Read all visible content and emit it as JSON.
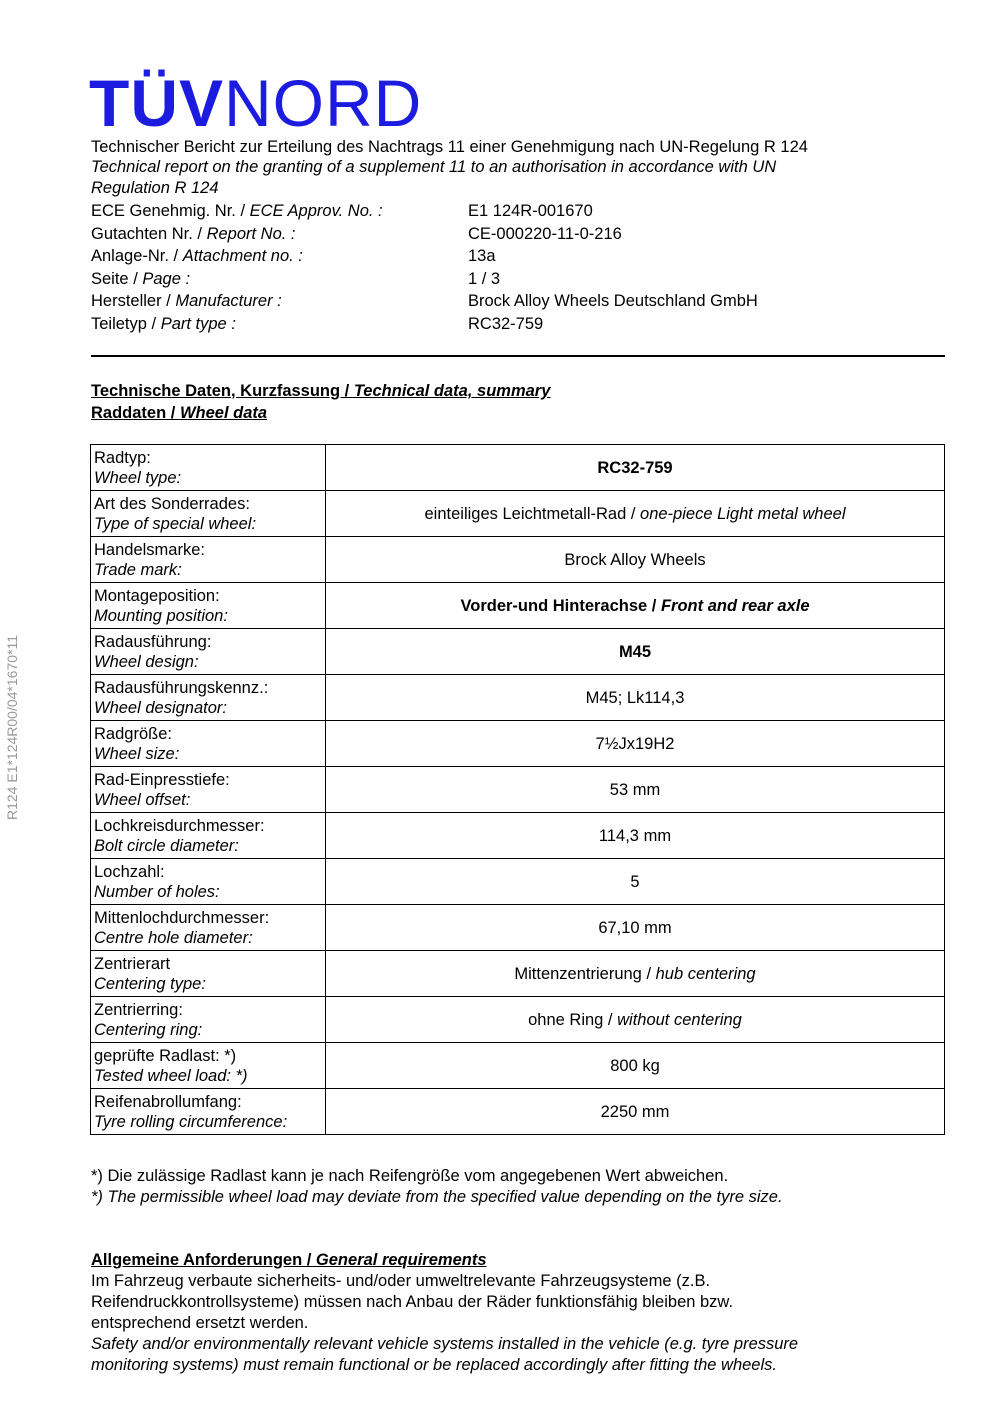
{
  "logo": {
    "bold": "TÜV",
    "light": "NORD"
  },
  "side_text": "R124  E1*124R00/04*1670*11",
  "title_de": "Technischer Bericht zur Erteilung des Nachtrags 11 einer Genehmigung nach UN-Regelung R 124",
  "title_en_1": "Technical report on the granting of a supplement 11 to an authorisation in accordance with UN",
  "title_en_2": "Regulation R 124",
  "meta": [
    {
      "de": "ECE Genehmig. Nr.  / ",
      "en": "ECE Approv. No. :",
      "value": "E1 124R-001670"
    },
    {
      "de": "Gutachten Nr.  / ",
      "en": "Report No. :",
      "value": "CE-000220-11-0-216"
    },
    {
      "de": "Anlage-Nr.  / ",
      "en": "Attachment no. :",
      "value": "13a"
    },
    {
      "de": "Seite  / ",
      "en": "Page :",
      "value": "1 / 3"
    },
    {
      "de": "Hersteller  / ",
      "en": "Manufacturer :",
      "value": "Brock Alloy Wheels Deutschland GmbH"
    },
    {
      "de": "Teiletyp  / ",
      "en": "Part type :",
      "value": "RC32-759"
    }
  ],
  "section1": {
    "de": "Technische Daten, Kurzfassung / ",
    "en": "Technical data, summary"
  },
  "section2": {
    "de": "Raddaten / ",
    "en": "Wheel data"
  },
  "rows": [
    {
      "de": "Radtyp:",
      "en": "Wheel type:",
      "v_de": "RC32-759",
      "v_en": "",
      "bold": true
    },
    {
      "de": "Art des Sonderrades:",
      "en": "Type of special wheel:",
      "v_de": "einteiliges Leichtmetall-Rad / ",
      "v_en": "one-piece Light metal wheel"
    },
    {
      "de": "Handelsmarke:",
      "en": "Trade mark:",
      "v_de": "Brock Alloy Wheels",
      "v_en": ""
    },
    {
      "de": "Montageposition:",
      "en": "Mounting position:",
      "v_de": "Vorder-und Hinterachse / ",
      "v_en": "Front and rear axle",
      "bold": true
    },
    {
      "de": "Radausführung:",
      "en": "Wheel design:",
      "v_de": "M45",
      "v_en": "",
      "bold": true
    },
    {
      "de": "Radausführungskennz.:",
      "en": "Wheel designator:",
      "v_de": "M45; Lk114,3",
      "v_en": ""
    },
    {
      "de": "Radgröße:",
      "en": "Wheel size:",
      "v_de": "7½Jx19H2",
      "v_en": ""
    },
    {
      "de": "Rad-Einpresstiefe:",
      "en": "Wheel offset:",
      "v_de": "53 mm",
      "v_en": ""
    },
    {
      "de": "Lochkreisdurchmesser:",
      "en": "Bolt circle diameter:",
      "v_de": "114,3 mm",
      "v_en": ""
    },
    {
      "de": "Lochzahl:",
      "en": "Number of holes:",
      "v_de": "5",
      "v_en": ""
    },
    {
      "de": "Mittenlochdurchmesser:",
      "en": "Centre hole diameter:",
      "v_de": "67,10 mm",
      "v_en": ""
    },
    {
      "de": "Zentrierart",
      "en": "Centering type:",
      "v_de": "Mittenzentrierung / ",
      "v_en": "hub centering"
    },
    {
      "de": "Zentrierring:",
      "en": "Centering ring:",
      "v_de": "ohne Ring / ",
      "v_en": "without centering"
    },
    {
      "de": "geprüfte Radlast: *)",
      "en": "Tested wheel load: *)",
      "v_de": "800 kg",
      "v_en": ""
    },
    {
      "de": "Reifenabrollumfang:",
      "en": "Tyre rolling circumference:",
      "v_de": "2250 mm",
      "v_en": ""
    }
  ],
  "note_de": "*) Die zulässige Radlast kann je nach Reifengröße vom angegebenen Wert abweichen.",
  "note_en": "*) The permissible wheel load may deviate from the specified value depending on the tyre size.",
  "section3": {
    "de": "Allgemeine Anforderungen / ",
    "en": "General requirements"
  },
  "req_de": [
    "Im Fahrzeug verbaute sicherheits- und/oder umweltrelevante Fahrzeugsysteme (z.B.",
    "Reifendruckkontrollsysteme) müssen nach Anbau der Räder funktionsfähig bleiben bzw.",
    "entsprechend ersetzt werden."
  ],
  "req_en": [
    "Safety and/or environmentally relevant vehicle systems installed in the vehicle (e.g. tyre pressure",
    "monitoring systems) must remain functional or be replaced accordingly after fitting the wheels."
  ]
}
